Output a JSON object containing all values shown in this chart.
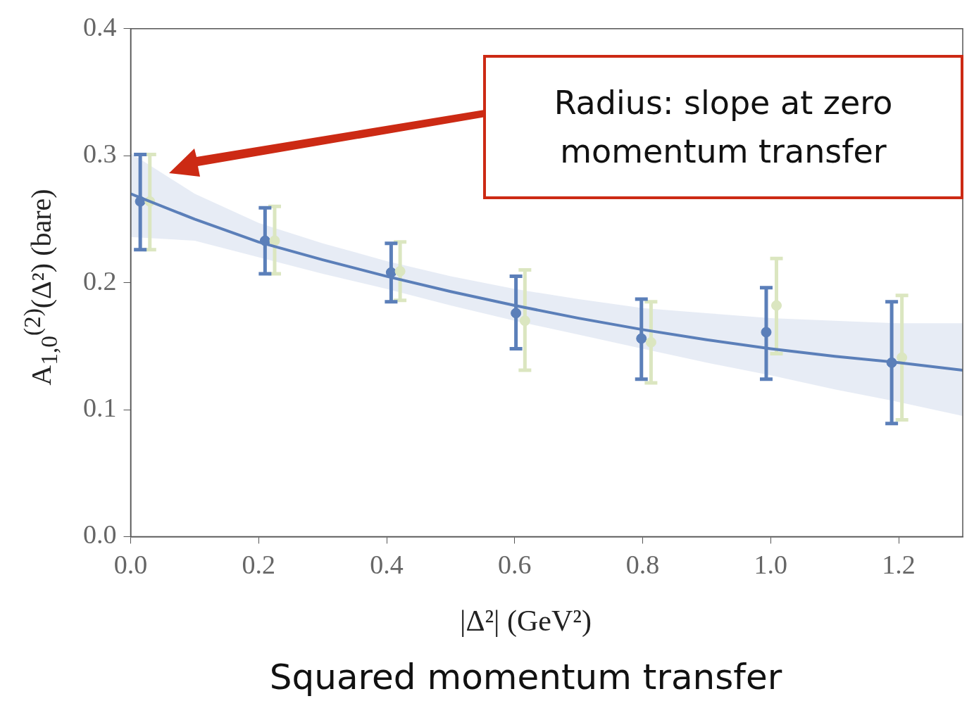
{
  "chart_data": {
    "type": "scatter",
    "ylabel": "A$_{1,0}$$^{(2)}$(Δ²) (bare)",
    "xlabel": "|Δ²| (GeV²)",
    "annotations": [
      "Squared momentum transfer",
      "Radius: slope at zero momentum transfer"
    ],
    "xlim": [
      0,
      1.3
    ],
    "ylim": [
      0,
      0.4
    ],
    "xticks": [
      {
        "value": 0,
        "label": "0.0"
      },
      {
        "value": 0.2,
        "label": "0.2"
      },
      {
        "value": 0.4,
        "label": "0.4"
      },
      {
        "value": 0.6,
        "label": "0.6"
      },
      {
        "value": 0.8,
        "label": "0.8"
      },
      {
        "value": 1,
        "label": "1.0"
      },
      {
        "value": 1.2,
        "label": "1.2"
      }
    ],
    "yticks": [
      {
        "value": 0,
        "label": "0.0"
      },
      {
        "value": 0.1,
        "label": "0.1"
      },
      {
        "value": 0.2,
        "label": "0.2"
      },
      {
        "value": 0.3,
        "label": "0.3"
      },
      {
        "value": 0.4,
        "label": "0.4"
      }
    ],
    "grid": false,
    "legend": false,
    "series": [
      {
        "type": "line",
        "color": "#5b7fb9",
        "marker": "none",
        "x": [
          0,
          0.1,
          0.2,
          0.3,
          0.4,
          0.5,
          0.6,
          0.7,
          0.8,
          0.9,
          1.0,
          1.1,
          1.2,
          1.3
        ],
        "values": [
          0.27,
          0.25,
          0.232,
          0.218,
          0.205,
          0.193,
          0.182,
          0.172,
          0.163,
          0.155,
          0.148,
          0.142,
          0.137,
          0.131
        ],
        "lower": [
          0.236,
          0.233,
          0.22,
          0.207,
          0.195,
          0.182,
          0.17,
          0.159,
          0.148,
          0.137,
          0.127,
          0.116,
          0.106,
          0.095
        ],
        "upper": [
          0.302,
          0.27,
          0.247,
          0.231,
          0.217,
          0.205,
          0.195,
          0.187,
          0.18,
          0.176,
          0.172,
          0.17,
          0.168,
          0.168
        ]
      },
      {
        "type": "scatter",
        "color": "#dbe6c0",
        "marker": "circle",
        "x": [
          0.03,
          0.225,
          0.421,
          0.616,
          0.813,
          1.009,
          1.205
        ],
        "values": [
          0.264,
          0.233,
          0.209,
          0.17,
          0.153,
          0.182,
          0.141
        ],
        "errors": [
          [
            0.226,
            0.301
          ],
          [
            0.207,
            0.26
          ],
          [
            0.186,
            0.232
          ],
          [
            0.131,
            0.21
          ],
          [
            0.121,
            0.185
          ],
          [
            0.144,
            0.219
          ],
          [
            0.092,
            0.19
          ]
        ]
      },
      {
        "type": "scatter",
        "color": "#5b7fb9",
        "marker": "circle",
        "x": [
          0.015,
          0.21,
          0.407,
          0.602,
          0.798,
          0.993,
          1.189
        ],
        "values": [
          0.264,
          0.233,
          0.208,
          0.176,
          0.156,
          0.161,
          0.137
        ],
        "errors": [
          [
            0.226,
            0.301
          ],
          [
            0.207,
            0.259
          ],
          [
            0.185,
            0.231
          ],
          [
            0.148,
            0.205
          ],
          [
            0.124,
            0.187
          ],
          [
            0.124,
            0.196
          ],
          [
            0.089,
            0.185
          ]
        ]
      }
    ]
  }
}
